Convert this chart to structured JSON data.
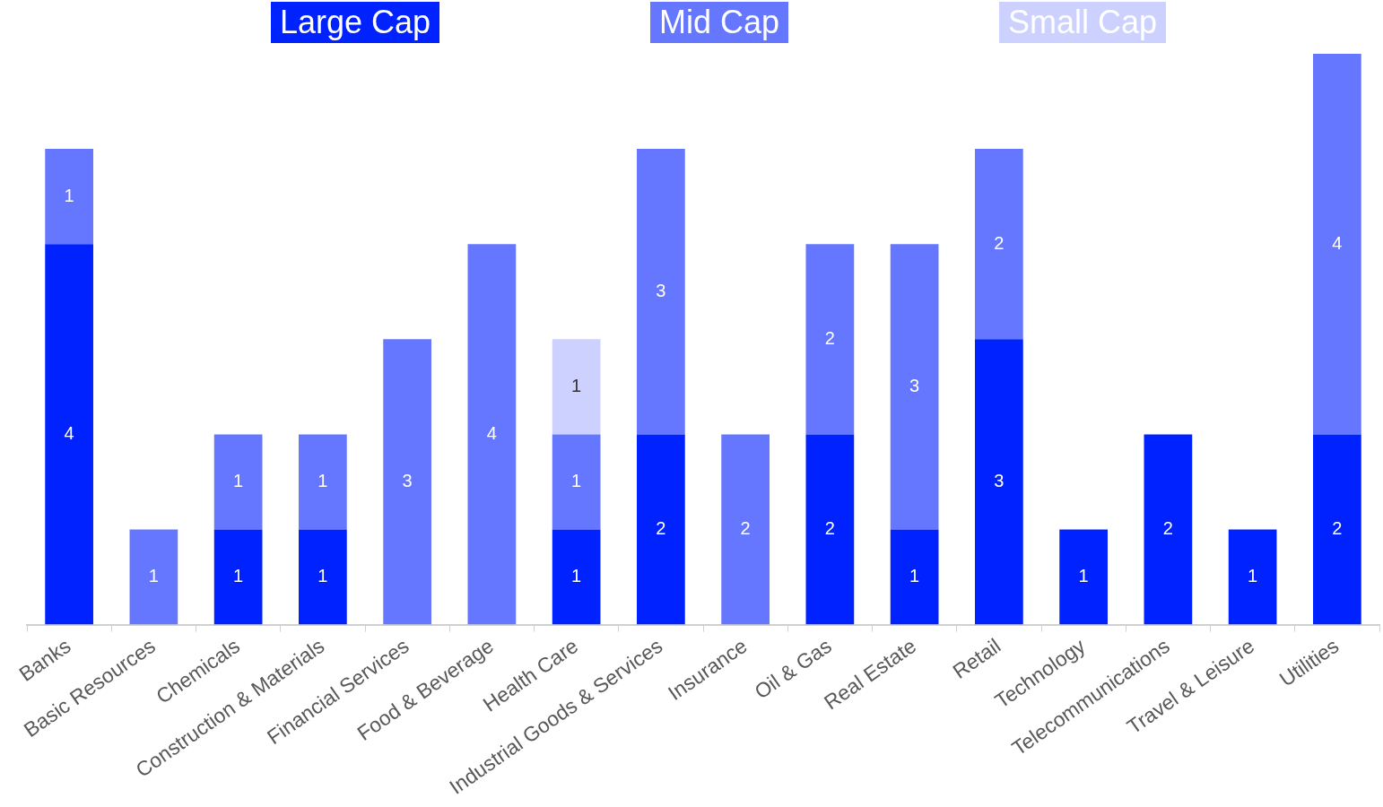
{
  "chart_data": {
    "type": "bar",
    "stacked": true,
    "data_labels": true,
    "grid": false,
    "legend": "top",
    "categories": [
      "Banks",
      "Basic Resources",
      "Chemicals",
      "Construction & Materials",
      "Financial Services",
      "Food & Beverage",
      "Health Care",
      "Industrial Goods & Services",
      "Insurance",
      "Oil & Gas",
      "Real Estate",
      "Retail",
      "Technology",
      "Telecommunications",
      "Travel & Leisure",
      "Utilities"
    ],
    "series": [
      {
        "name": "Large Cap",
        "color": "#0022ff",
        "values": [
          4,
          null,
          1,
          1,
          null,
          null,
          1,
          2,
          null,
          2,
          1,
          3,
          1,
          2,
          1,
          2
        ]
      },
      {
        "name": "Mid Cap",
        "color": "#6677ff",
        "values": [
          1,
          1,
          1,
          1,
          3,
          4,
          1,
          3,
          2,
          2,
          3,
          2,
          null,
          null,
          null,
          4
        ]
      },
      {
        "name": "Small Cap",
        "color": "#ccd1ff",
        "values": [
          null,
          null,
          null,
          null,
          null,
          null,
          1,
          null,
          null,
          null,
          null,
          null,
          null,
          null,
          null,
          null
        ]
      }
    ]
  }
}
